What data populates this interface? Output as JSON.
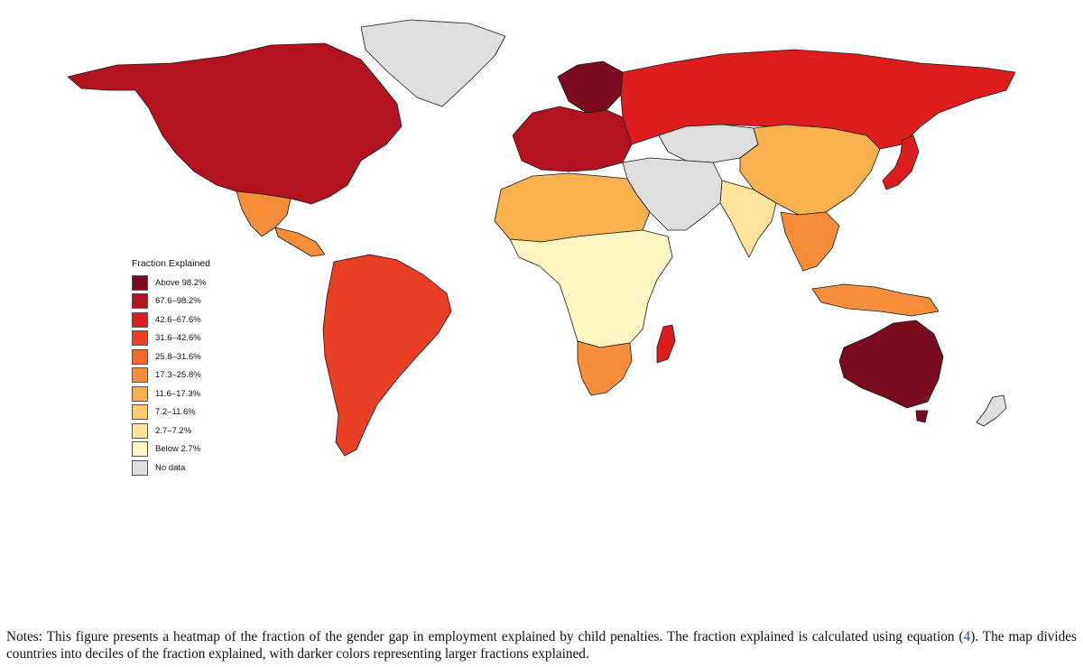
{
  "legend": {
    "title": "Fraction Explained",
    "classes": [
      {
        "label": "Above 98.2%",
        "color": "#7a0a1e"
      },
      {
        "label": "67.6–98.2%",
        "color": "#b3121f"
      },
      {
        "label": "42.6–67.6%",
        "color": "#dd1d1d"
      },
      {
        "label": "31.6–42.6%",
        "color": "#ea3e25"
      },
      {
        "label": "25.8–31.6%",
        "color": "#f2692e"
      },
      {
        "label": "17.3–25.8%",
        "color": "#f68d3a"
      },
      {
        "label": "11.6–17.3%",
        "color": "#f9b04f"
      },
      {
        "label": "7.2–11.6%",
        "color": "#fbcc6e"
      },
      {
        "label": "2.7–7.2%",
        "color": "#fde49a"
      },
      {
        "label": "Below 2.7%",
        "color": "#fff6c4"
      },
      {
        "label": "No data",
        "color": "#dedede"
      }
    ]
  },
  "regions": [
    {
      "name": "north-america",
      "class": "67.6–98.2%"
    },
    {
      "name": "greenland",
      "class": "No data"
    },
    {
      "name": "mexico",
      "class": "17.3–25.8%"
    },
    {
      "name": "central-america",
      "class": "17.3–25.8%"
    },
    {
      "name": "south-america",
      "class": "31.6–42.6%"
    },
    {
      "name": "northern-europe",
      "class": "Above 98.2%"
    },
    {
      "name": "western-europe",
      "class": "67.6–98.2%"
    },
    {
      "name": "russia",
      "class": "42.6–67.6%"
    },
    {
      "name": "central-asia",
      "class": "No data"
    },
    {
      "name": "china",
      "class": "11.6–17.3%"
    },
    {
      "name": "india",
      "class": "2.7–7.2%"
    },
    {
      "name": "middle-east",
      "class": "No data"
    },
    {
      "name": "north-africa",
      "class": "11.6–17.3%"
    },
    {
      "name": "central-africa",
      "class": "Below 2.7%"
    },
    {
      "name": "southern-africa",
      "class": "17.3–25.8%"
    },
    {
      "name": "madagascar",
      "class": "42.6–67.6%"
    },
    {
      "name": "japan",
      "class": "42.6–67.6%"
    },
    {
      "name": "southeast-asia",
      "class": "17.3–25.8%"
    },
    {
      "name": "indonesia",
      "class": "17.3–25.8%"
    },
    {
      "name": "australia",
      "class": "Above 98.2%"
    },
    {
      "name": "new-zealand",
      "class": "No data"
    }
  ],
  "notes": {
    "before_ref": "Notes: This figure presents a heatmap of the fraction of the gender gap in employment explained by child penalties. The fraction explained is calculated using equation (",
    "ref": "4",
    "after_ref": "). The map divides countries into deciles of the fraction explained, with darker colors representing larger fractions explained."
  }
}
